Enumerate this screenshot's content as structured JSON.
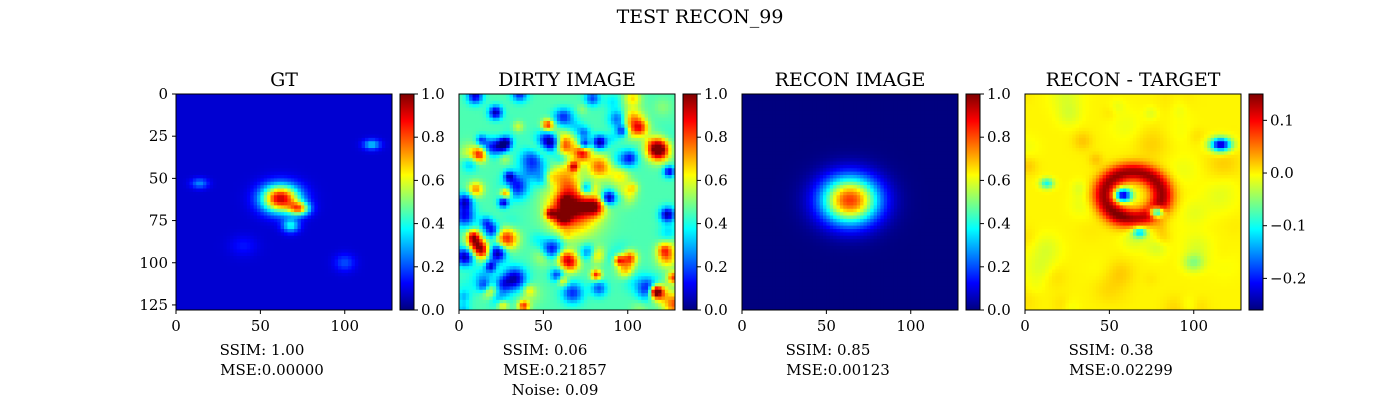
{
  "figure": {
    "title": "TEST RECON_99"
  },
  "colormap": [
    "#00007f",
    "#0000ff",
    "#007fff",
    "#00ffff",
    "#7fff7f",
    "#ffff00",
    "#ff7f00",
    "#ff0000",
    "#7f0000"
  ],
  "chart_data": [
    {
      "type": "heatmap",
      "title": "GT",
      "x_ticks": [
        0,
        50,
        100
      ],
      "y_ticks": [
        0,
        25,
        50,
        75,
        100,
        125
      ],
      "xlim": [
        0,
        128
      ],
      "ylim": [
        128,
        0
      ],
      "colorbar": {
        "range": [
          0,
          1
        ],
        "ticks": [
          "0.0",
          "0.2",
          "0.4",
          "0.6",
          "0.8",
          "1.0"
        ],
        "tick_values": [
          0,
          0.2,
          0.4,
          0.6,
          0.8,
          1.0
        ]
      },
      "caption": [
        "SSIM: 1.00",
        "MSE:0.00000"
      ],
      "metrics": {
        "ssim": 1.0,
        "mse": 0.0
      },
      "blobs": [
        {
          "x": 62,
          "y": 62,
          "rx": 11,
          "ry": 8,
          "v": 0.85
        },
        {
          "x": 73,
          "y": 68,
          "rx": 6,
          "ry": 4,
          "v": 0.55
        },
        {
          "x": 68,
          "y": 78,
          "rx": 5,
          "ry": 4,
          "v": 0.3
        },
        {
          "x": 116,
          "y": 30,
          "rx": 5,
          "ry": 3,
          "v": 0.25
        },
        {
          "x": 14,
          "y": 53,
          "rx": 5,
          "ry": 3,
          "v": 0.18
        },
        {
          "x": 100,
          "y": 100,
          "rx": 6,
          "ry": 5,
          "v": 0.12
        },
        {
          "x": 40,
          "y": 90,
          "rx": 8,
          "ry": 6,
          "v": 0.06
        }
      ],
      "base": 0.08
    },
    {
      "type": "heatmap",
      "title": "DIRTY IMAGE",
      "x_ticks": [
        0,
        50,
        100
      ],
      "y_ticks": [],
      "xlim": [
        0,
        128
      ],
      "ylim": [
        128,
        0
      ],
      "colorbar": {
        "range": [
          0,
          1
        ],
        "ticks": [
          "0.0",
          "0.2",
          "0.4",
          "0.6",
          "0.8",
          "1.0"
        ],
        "tick_values": [
          0,
          0.2,
          0.4,
          0.6,
          0.8,
          1.0
        ]
      },
      "caption": [
        "SSIM: 0.06",
        "MSE:0.21857",
        "Noise: 0.09"
      ],
      "metrics": {
        "ssim": 0.06,
        "mse": 0.21857,
        "noise": 0.09
      },
      "noise_field": true,
      "blobs": [
        {
          "x": 62,
          "y": 58,
          "rx": 10,
          "ry": 18,
          "v": 0.35
        },
        {
          "x": 70,
          "y": 70,
          "rx": 14,
          "ry": 14,
          "v": 0.3
        }
      ],
      "base": 0.45
    },
    {
      "type": "heatmap",
      "title": "RECON IMAGE",
      "x_ticks": [
        0,
        50,
        100
      ],
      "y_ticks": [],
      "xlim": [
        0,
        128
      ],
      "ylim": [
        128,
        0
      ],
      "colorbar": {
        "range": [
          0,
          1
        ],
        "ticks": [
          "0.0",
          "0.2",
          "0.4",
          "0.6",
          "0.8",
          "1.0"
        ],
        "tick_values": [
          0,
          0.2,
          0.4,
          0.6,
          0.8,
          1.0
        ]
      },
      "caption": [
        "SSIM: 0.85",
        "MSE:0.00123"
      ],
      "metrics": {
        "ssim": 0.85,
        "mse": 0.00123
      },
      "blobs": [
        {
          "x": 64,
          "y": 63,
          "rx": 17,
          "ry": 14,
          "v": 0.82
        }
      ],
      "base": 0.0
    },
    {
      "type": "heatmap",
      "title": "RECON - TARGET",
      "x_ticks": [
        0,
        50,
        100
      ],
      "y_ticks": [],
      "xlim": [
        0,
        128
      ],
      "ylim": [
        128,
        0
      ],
      "colorbar": {
        "range": [
          -0.26,
          0.15
        ],
        "ticks": [
          "0.1",
          "0.0",
          "−0.1",
          "−0.2"
        ],
        "tick_values": [
          0.1,
          0.0,
          -0.1,
          -0.2
        ]
      },
      "caption": [
        "SSIM: 0.38",
        "MSE:0.02299"
      ],
      "metrics": {
        "ssim": 0.38,
        "mse": 0.02299
      },
      "diff": true,
      "blobs": [
        {
          "x": 64,
          "y": 60,
          "rx": 20,
          "ry": 16,
          "v": 0.14,
          "ring": true
        },
        {
          "x": 58,
          "y": 60,
          "rx": 5,
          "ry": 4,
          "v": -0.24
        },
        {
          "x": 78,
          "y": 70,
          "rx": 4,
          "ry": 3,
          "v": -0.22
        },
        {
          "x": 68,
          "y": 82,
          "rx": 4,
          "ry": 3,
          "v": -0.12
        },
        {
          "x": 116,
          "y": 30,
          "rx": 6,
          "ry": 4,
          "v": -0.24
        },
        {
          "x": 13,
          "y": 53,
          "rx": 4,
          "ry": 3,
          "v": -0.1
        },
        {
          "x": 100,
          "y": 100,
          "rx": 6,
          "ry": 5,
          "v": -0.05
        }
      ],
      "base": 0.0
    }
  ]
}
